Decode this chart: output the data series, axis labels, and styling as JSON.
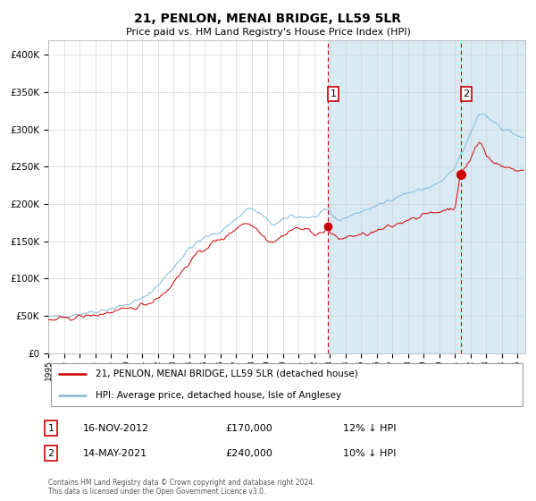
{
  "title": "21, PENLON, MENAI BRIDGE, LL59 5LR",
  "subtitle": "Price paid vs. HM Land Registry's House Price Index (HPI)",
  "legend_line1": "21, PENLON, MENAI BRIDGE, LL59 5LR (detached house)",
  "legend_line2": "HPI: Average price, detached house, Isle of Anglesey",
  "annotation1_date": "16-NOV-2012",
  "annotation1_price": "£170,000",
  "annotation1_note": "12% ↓ HPI",
  "annotation2_date": "14-MAY-2021",
  "annotation2_price": "£240,000",
  "annotation2_note": "10% ↓ HPI",
  "vline1_x": 2012.88,
  "vline2_x": 2021.37,
  "point1_x": 2012.88,
  "point1_y": 170000,
  "point2_x": 2021.37,
  "point2_y": 240000,
  "hpi_color": "#7fb8d8",
  "price_color": "#cc0000",
  "shade_color": "#daeaf5",
  "plot_bg": "#ffffff",
  "grid_color": "#cccccc",
  "ylim": [
    0,
    420000
  ],
  "xlim_start": 1995.0,
  "xlim_end": 2025.5,
  "footer": "Contains HM Land Registry data © Crown copyright and database right 2024.\nThis data is licensed under the Open Government Licence v3.0.",
  "yticks": [
    0,
    50000,
    100000,
    150000,
    200000,
    250000,
    300000,
    350000,
    400000
  ],
  "xtick_years": [
    1995,
    1996,
    1997,
    1998,
    1999,
    2000,
    2001,
    2002,
    2003,
    2004,
    2005,
    2006,
    2007,
    2008,
    2009,
    2010,
    2011,
    2012,
    2013,
    2014,
    2015,
    2016,
    2017,
    2018,
    2019,
    2020,
    2021,
    2022,
    2023,
    2024,
    2025
  ]
}
